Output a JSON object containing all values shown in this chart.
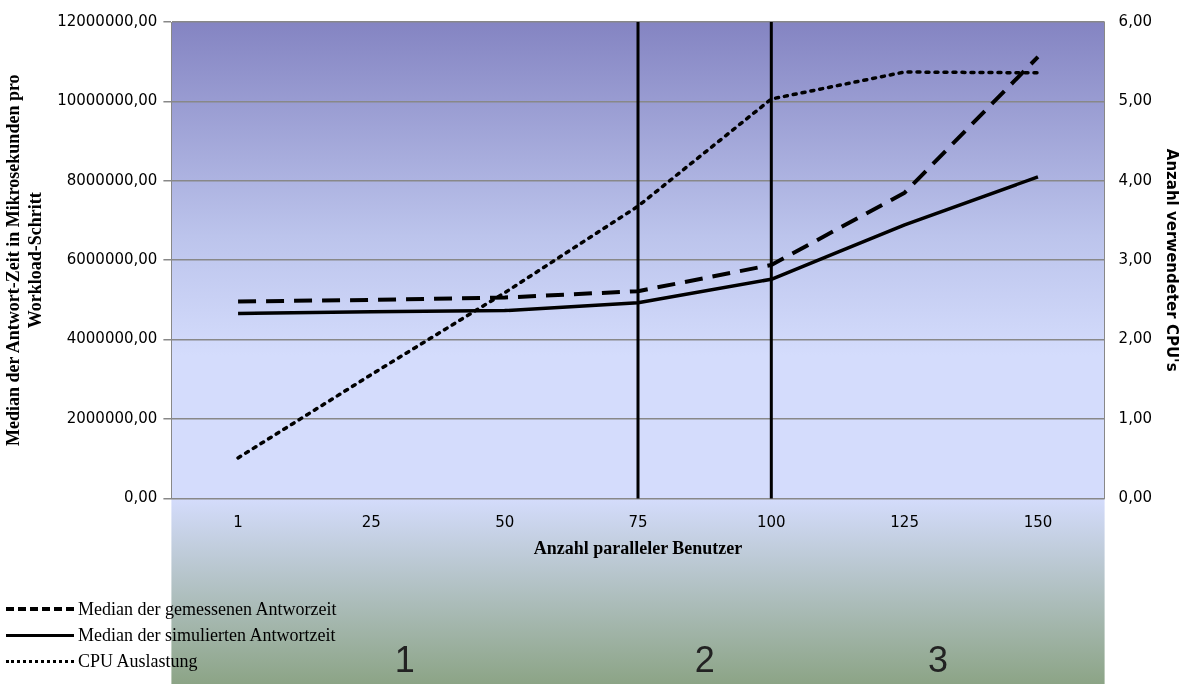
{
  "chart_data": {
    "type": "line",
    "xlabel": "Anzahl paralleler Benutzer",
    "ylabel": "Median der Antwort-Zeit in Mikrosekunden pro Workload-Schritt",
    "y2label": "Anzahl verwendeter CPU's",
    "categories": [
      "1",
      "25",
      "50",
      "75",
      "100",
      "125",
      "150"
    ],
    "series": [
      {
        "name": "Median der gemessenen Antworzeit",
        "color": "#000000",
        "line_style": "dashed",
        "values": [
          4960000,
          5000000,
          5060000,
          5220000,
          5880000,
          7700000,
          11120000
        ]
      },
      {
        "name": "Median der simulierten Antwortzeit",
        "color": "#000000",
        "line_style": "solid",
        "values": [
          4660000,
          4700000,
          4730000,
          4930000,
          5520000,
          6890000,
          8100000
        ]
      },
      {
        "name": "CPU Auslastung",
        "color": "#000000",
        "line_style": "dotted",
        "axis": "y2",
        "values": [
          0.51,
          1.56,
          2.59,
          3.68,
          5.03,
          5.37,
          5.36
        ]
      }
    ],
    "ylim": [
      0,
      12000000
    ],
    "yticks": [
      {
        "value": 0,
        "label": "0,00"
      },
      {
        "value": 2000000,
        "label": "2000000,00"
      },
      {
        "value": 4000000,
        "label": "4000000,00"
      },
      {
        "value": 6000000,
        "label": "6000000,00"
      },
      {
        "value": 8000000,
        "label": "8000000,00"
      },
      {
        "value": 10000000,
        "label": "10000000,00"
      },
      {
        "value": 12000000,
        "label": "12000000,00"
      }
    ],
    "y2lim": [
      0,
      6
    ],
    "y2ticks": [
      {
        "value": 0,
        "label": "0,00"
      },
      {
        "value": 1,
        "label": "1,00"
      },
      {
        "value": 2,
        "label": "2,00"
      },
      {
        "value": 3,
        "label": "3,00"
      },
      {
        "value": 4,
        "label": "4,00"
      },
      {
        "value": 5,
        "label": "5,00"
      },
      {
        "value": 6,
        "label": "6,00"
      }
    ],
    "ref_lines": [
      {
        "axis": "x",
        "value": "75",
        "color": "#000000"
      },
      {
        "axis": "x",
        "value": "100",
        "color": "#000000"
      }
    ],
    "annotations": [
      "1",
      "2",
      "3"
    ],
    "grid": "y",
    "legend": "bottom left",
    "marker": "none"
  }
}
